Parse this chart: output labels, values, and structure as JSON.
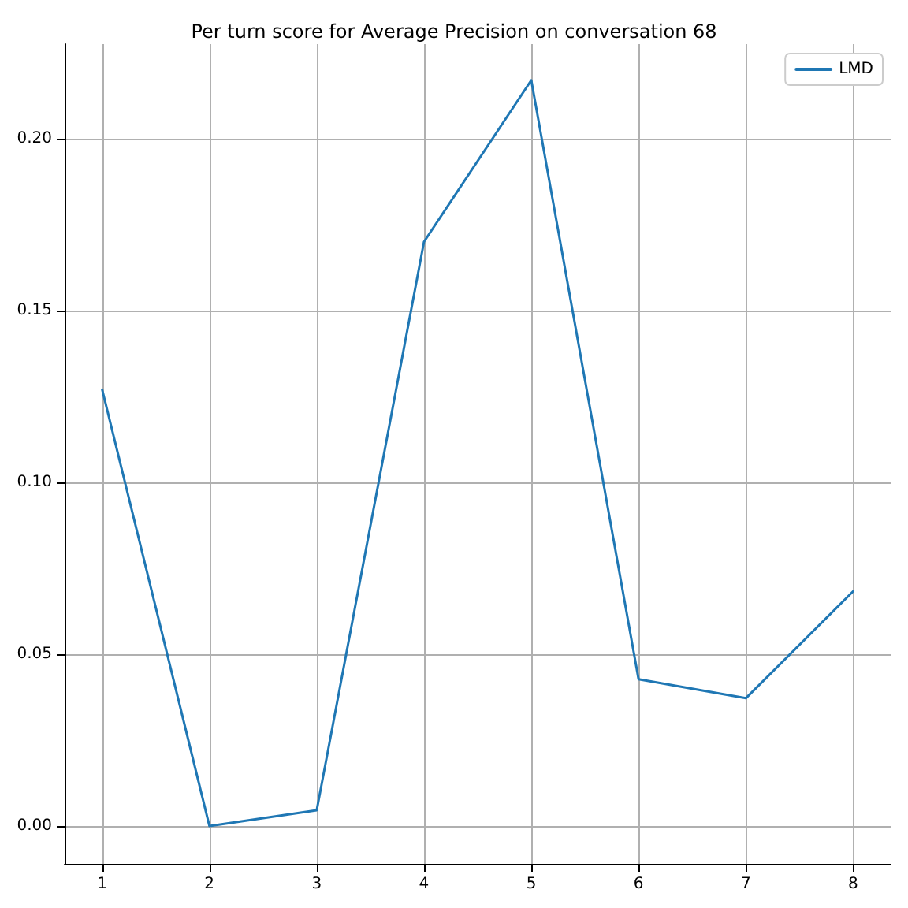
{
  "chart_data": {
    "type": "line",
    "title": "Per turn score for Average Precision on conversation 68",
    "x": [
      1,
      2,
      3,
      4,
      5,
      6,
      7,
      8
    ],
    "series": [
      {
        "name": "LMD",
        "color": "#1f77b4",
        "values": [
          0.127,
          0.0,
          0.0046,
          0.17,
          0.217,
          0.0427,
          0.0372,
          0.0683
        ]
      }
    ],
    "xlim": [
      0.65,
      8.35
    ],
    "xticks": [
      1,
      2,
      3,
      4,
      5,
      6,
      7,
      8
    ],
    "ylim": [
      -0.011,
      0.2275
    ],
    "yticks": [
      {
        "value": 0,
        "label": "0.00"
      },
      {
        "value": 0.05,
        "label": "0.05"
      },
      {
        "value": 0.1,
        "label": "0.10"
      },
      {
        "value": 0.15,
        "label": "0.15"
      },
      {
        "value": 0.2,
        "label": "0.20"
      }
    ],
    "grid": true,
    "legend": "top right",
    "marker": "none",
    "line_style": "solid"
  }
}
